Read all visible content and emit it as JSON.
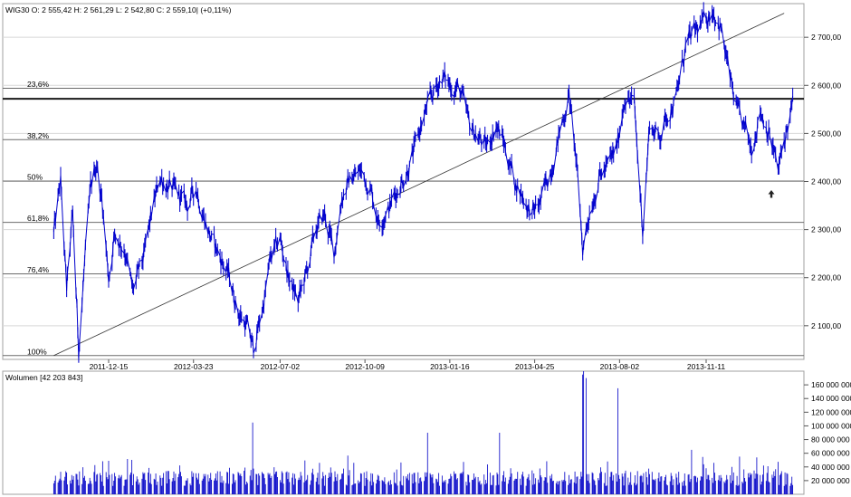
{
  "chart_data": [
    {
      "type": "line",
      "header": "WIG30 O: 2 555,42  H: 2 561,29  L: 2 542,80  C: 2 559,10| (+0,11%)",
      "x_ticks": [
        "2011-12-15",
        "2012-03-23",
        "2012-07-02",
        "2012-10-09",
        "2013-01-16",
        "2013-04-25",
        "2013-08-02",
        "2013-11-11"
      ],
      "y_ticks": [
        "2 100,00",
        "2 200,00",
        "2 300,00",
        "2 400,00",
        "2 500,00",
        "2 600,00",
        "2 700,00"
      ],
      "ylim": [
        2030,
        2770
      ],
      "grid": true,
      "fib_levels": [
        {
          "label": "23,6%",
          "value": 2594
        },
        {
          "label": "38,2%",
          "value": 2487
        },
        {
          "label": "50%",
          "value": 2401
        },
        {
          "label": "61,8%",
          "value": 2315
        },
        {
          "label": "76,4%",
          "value": 2208
        },
        {
          "label": "100%",
          "value": 2038
        }
      ],
      "resistance_level": 2572,
      "trendline": {
        "from": [
          "2011-10-12",
          2038
        ],
        "to": [
          "2014-02-10",
          2750
        ]
      },
      "series": [
        {
          "values": [
            [
              "2011-10-12",
              2290
            ],
            [
              "2011-10-20",
              2400
            ],
            [
              "2011-10-27",
              2170
            ],
            [
              "2011-11-03",
              2330
            ],
            [
              "2011-11-10",
              2050
            ],
            [
              "2011-11-17",
              2230
            ],
            [
              "2011-11-24",
              2380
            ],
            [
              "2011-12-01",
              2440
            ],
            [
              "2011-12-08",
              2350
            ],
            [
              "2011-12-15",
              2200
            ],
            [
              "2011-12-22",
              2290
            ],
            [
              "2012-01-03",
              2260
            ],
            [
              "2012-01-12",
              2170
            ],
            [
              "2012-01-25",
              2240
            ],
            [
              "2012-02-03",
              2330
            ],
            [
              "2012-02-13",
              2410
            ],
            [
              "2012-02-23",
              2390
            ],
            [
              "2012-03-05",
              2370
            ],
            [
              "2012-03-16",
              2350
            ],
            [
              "2012-03-26",
              2390
            ],
            [
              "2012-04-04",
              2330
            ],
            [
              "2012-04-13",
              2280
            ],
            [
              "2012-04-24",
              2240
            ],
            [
              "2012-05-04",
              2200
            ],
            [
              "2012-05-14",
              2130
            ],
            [
              "2012-05-24",
              2100
            ],
            [
              "2012-06-01",
              2050
            ],
            [
              "2012-06-12",
              2140
            ],
            [
              "2012-06-21",
              2240
            ],
            [
              "2012-07-02",
              2280
            ],
            [
              "2012-07-12",
              2200
            ],
            [
              "2012-07-23",
              2150
            ],
            [
              "2012-08-02",
              2210
            ],
            [
              "2012-08-13",
              2300
            ],
            [
              "2012-08-23",
              2330
            ],
            [
              "2012-09-03",
              2250
            ],
            [
              "2012-09-12",
              2370
            ],
            [
              "2012-09-24",
              2410
            ],
            [
              "2012-10-04",
              2420
            ],
            [
              "2012-10-15",
              2390
            ],
            [
              "2012-10-25",
              2320
            ],
            [
              "2012-11-05",
              2340
            ],
            [
              "2012-11-15",
              2380
            ],
            [
              "2012-11-26",
              2420
            ],
            [
              "2012-12-05",
              2460
            ],
            [
              "2012-12-14",
              2520
            ],
            [
              "2012-12-27",
              2580
            ],
            [
              "2013-01-07",
              2620
            ],
            [
              "2013-01-16",
              2600
            ],
            [
              "2013-01-28",
              2590
            ],
            [
              "2013-02-07",
              2520
            ],
            [
              "2013-02-19",
              2490
            ],
            [
              "2013-02-28",
              2470
            ],
            [
              "2013-03-11",
              2520
            ],
            [
              "2013-03-20",
              2480
            ],
            [
              "2013-04-02",
              2400
            ],
            [
              "2013-04-11",
              2370
            ],
            [
              "2013-04-22",
              2330
            ],
            [
              "2013-05-03",
              2360
            ],
            [
              "2013-05-14",
              2430
            ],
            [
              "2013-05-24",
              2500
            ],
            [
              "2013-06-04",
              2580
            ],
            [
              "2013-06-12",
              2450
            ],
            [
              "2013-06-20",
              2260
            ],
            [
              "2013-06-28",
              2340
            ],
            [
              "2013-07-09",
              2410
            ],
            [
              "2013-07-19",
              2430
            ],
            [
              "2013-07-30",
              2470
            ],
            [
              "2013-08-08",
              2580
            ],
            [
              "2013-08-19",
              2560
            ],
            [
              "2013-08-29",
              2300
            ],
            [
              "2013-09-06",
              2520
            ],
            [
              "2013-09-17",
              2490
            ],
            [
              "2013-09-27",
              2540
            ],
            [
              "2013-10-08",
              2580
            ],
            [
              "2013-10-18",
              2680
            ],
            [
              "2013-10-29",
              2710
            ],
            [
              "2013-11-08",
              2730
            ],
            [
              "2013-11-19",
              2760
            ],
            [
              "2013-11-28",
              2720
            ],
            [
              "2013-12-09",
              2610
            ],
            [
              "2013-12-18",
              2540
            ],
            [
              "2014-01-03",
              2470
            ],
            [
              "2014-01-13",
              2550
            ],
            [
              "2014-01-24",
              2500
            ],
            [
              "2014-02-03",
              2420
            ],
            [
              "2014-02-12",
              2500
            ],
            [
              "2014-02-20",
              2559
            ]
          ]
        }
      ]
    },
    {
      "type": "bar",
      "header": "Wolumen [42 203 843]",
      "y_ticks": [
        "20 000 000",
        "40 000 000",
        "60 000 000",
        "80 000 000",
        "100 000 000",
        "120 000 000",
        "140 000 000",
        "160 000 000"
      ],
      "ylim": [
        0,
        180000000
      ],
      "spikes": [
        [
          "2012-05-31",
          105000000
        ],
        [
          "2012-12-21",
          90000000
        ],
        [
          "2013-03-15",
          90000000
        ],
        [
          "2013-06-20",
          175000000
        ],
        [
          "2013-06-21",
          180000000
        ],
        [
          "2013-06-24",
          170000000
        ],
        [
          "2013-07-31",
          155000000
        ],
        [
          "2013-10-25",
          65000000
        ],
        [
          "2013-12-20",
          55000000
        ]
      ]
    }
  ]
}
